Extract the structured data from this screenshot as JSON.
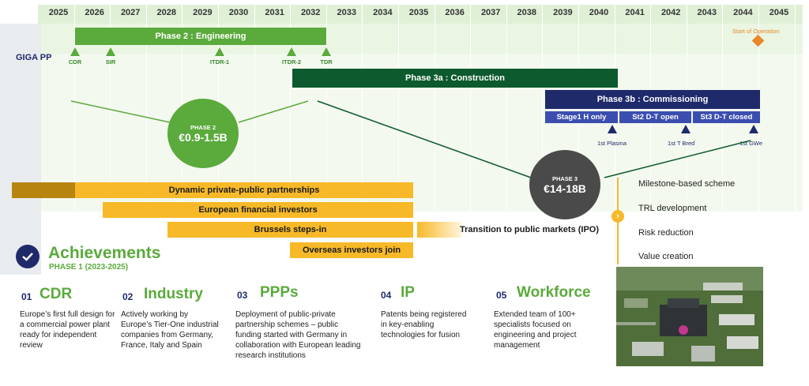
{
  "timeline": {
    "years": [
      "2025",
      "2026",
      "2027",
      "2028",
      "2029",
      "2030",
      "2031",
      "2032",
      "2033",
      "2034",
      "2035",
      "2036",
      "2037",
      "2038",
      "2039",
      "2040",
      "2041",
      "2042",
      "2043",
      "2044",
      "2045"
    ],
    "row_label": "GIGA PP"
  },
  "phases": {
    "phase2": "Phase 2 : Engineering",
    "phase3a": "Phase 3a : Construction",
    "phase3b": "Phase 3b : Commissioning",
    "stages": [
      "Stage1 H only",
      "St2 D-T open",
      "St3 D-T closed"
    ],
    "start_operation": "Start of Operation"
  },
  "milestones": [
    "CDR",
    "SIR",
    "ITDR-1",
    "ITDR-2",
    "TDR"
  ],
  "plasma_markers": [
    "1st Plasma",
    "1st T Bred",
    "1st GWe"
  ],
  "costs": {
    "phase2": {
      "label": "PHASE 2",
      "value": "€0.9-1.5B"
    },
    "phase3": {
      "label": "PHASE 3",
      "value": "€14-18B"
    }
  },
  "funding": {
    "bars": [
      "Dynamic private-public partnerships",
      "European financial investors",
      "Brussels steps-in",
      "Overseas investors join"
    ],
    "transition": "Transition to public markets (IPO)"
  },
  "right_list": [
    "Milestone-based scheme",
    "TRL development",
    "Risk reduction",
    "Value creation"
  ],
  "achievements": {
    "title": "Achievements",
    "subtitle": "PHASE 1 (2023-2025)",
    "items": [
      {
        "num": "01",
        "title": "CDR",
        "text": "Europe’s first full design for a commercial power plant ready for independent review"
      },
      {
        "num": "02",
        "title": "Industry",
        "text": "Actively working by Europe’s Tier-One industrial companies from Germany, France, Italy and Spain"
      },
      {
        "num": "03",
        "title": "PPPs",
        "text": "Deployment of public-private partnership schemes – public funding started with Germany in collaboration with European leading research institutions"
      },
      {
        "num": "04",
        "title": "IP",
        "text": "Patents being registered in key-enabling technologies for fusion"
      },
      {
        "num": "05",
        "title": "Workforce",
        "text": "Extended team of 100+ specialists focused on engineering and project management"
      }
    ]
  },
  "colors": {
    "green": "#5aaa3c",
    "dark_green": "#0d5a2e",
    "navy": "#1f2a6b",
    "yellow": "#f7b928",
    "orange": "#e8882a",
    "grey": "#4a4a4a"
  }
}
